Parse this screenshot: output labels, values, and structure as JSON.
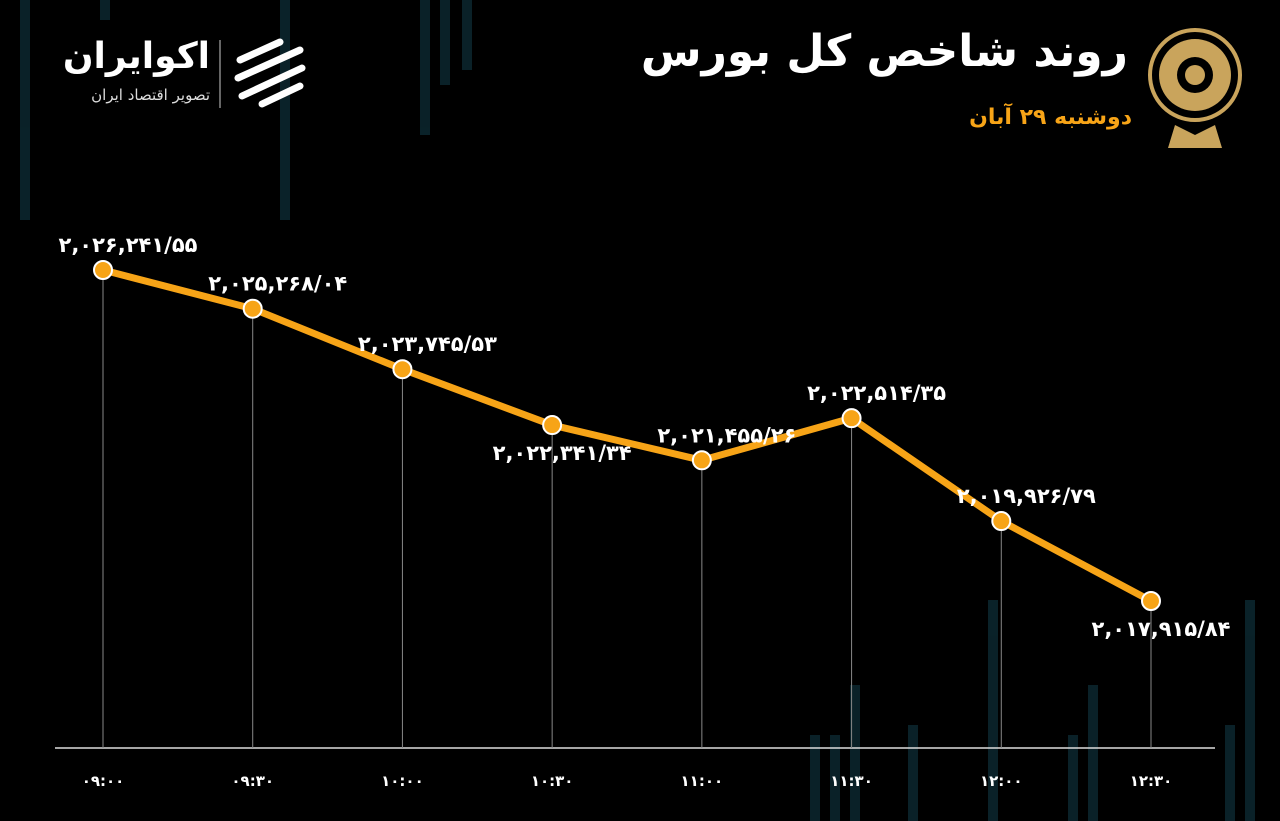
{
  "logo": {
    "name": "اکوایران",
    "tagline": "تصویر اقتصاد ایران"
  },
  "chart_data": {
    "type": "line",
    "title": "روند شاخص کل بورس",
    "subtitle": "دوشنبه ۲۹ آبان",
    "categories": [
      "۰۹:۰۰",
      "۰۹:۳۰",
      "۱۰:۰۰",
      "۱۰:۳۰",
      "۱۱:۰۰",
      "۱۱:۳۰",
      "۱۲:۰۰",
      "۱۲:۳۰"
    ],
    "values": [
      2026241.55,
      2025268.04,
      2023745.53,
      2022341.34,
      2021455.26,
      2022514.35,
      2019926.79,
      2017915.84
    ],
    "value_labels": [
      "۲,۰۲۶,۲۴۱/۵۵",
      "۲,۰۲۵,۲۶۸/۰۴",
      "۲,۰۲۳,۷۴۵/۵۳",
      "۲,۰۲۲,۳۴۱/۳۴",
      "۲,۰۲۱,۴۵۵/۲۶",
      "۲,۰۲۲,۵۱۴/۳۵",
      "۲,۰۱۹,۹۲۶/۷۹",
      "۲,۰۱۷,۹۱۵/۸۴"
    ],
    "color": "#f7a417"
  }
}
